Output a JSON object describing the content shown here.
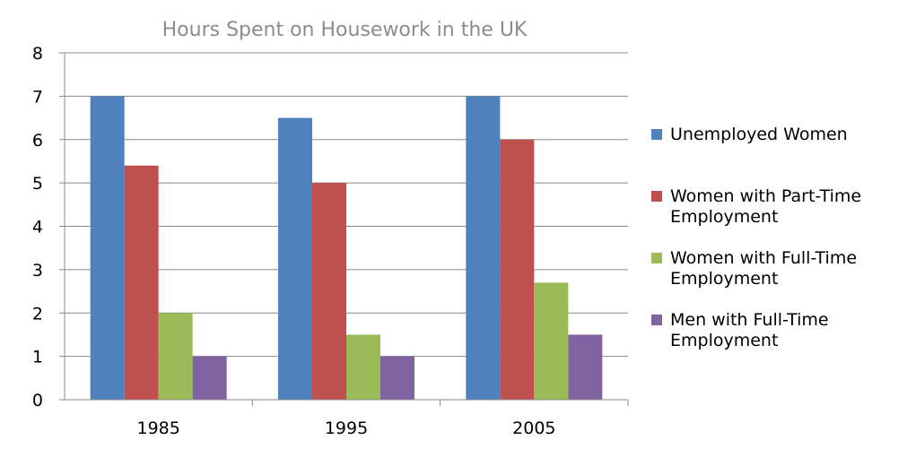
{
  "chart_data": {
    "type": "bar",
    "title": "Hours Spent on Housework in the UK",
    "categories": [
      "1985",
      "1995",
      "2005"
    ],
    "series": [
      {
        "name": "Unemployed Women",
        "values": [
          7,
          6.5,
          7
        ],
        "color": "#4f81bd"
      },
      {
        "name": "Women with Part-Time Employment",
        "values": [
          5.4,
          5,
          6
        ],
        "color": "#c0504d"
      },
      {
        "name": "Women with Full-Time Employment",
        "values": [
          2,
          1.5,
          2.7
        ],
        "color": "#9bbb59"
      },
      {
        "name": "Men with Full-Time Employment",
        "values": [
          1,
          1,
          1.5
        ],
        "color": "#8064a2"
      }
    ],
    "ylim": [
      0,
      8
    ],
    "yticks": [
      0,
      1,
      2,
      3,
      4,
      5,
      6,
      7,
      8
    ],
    "grid": true,
    "legend_position": "right"
  }
}
